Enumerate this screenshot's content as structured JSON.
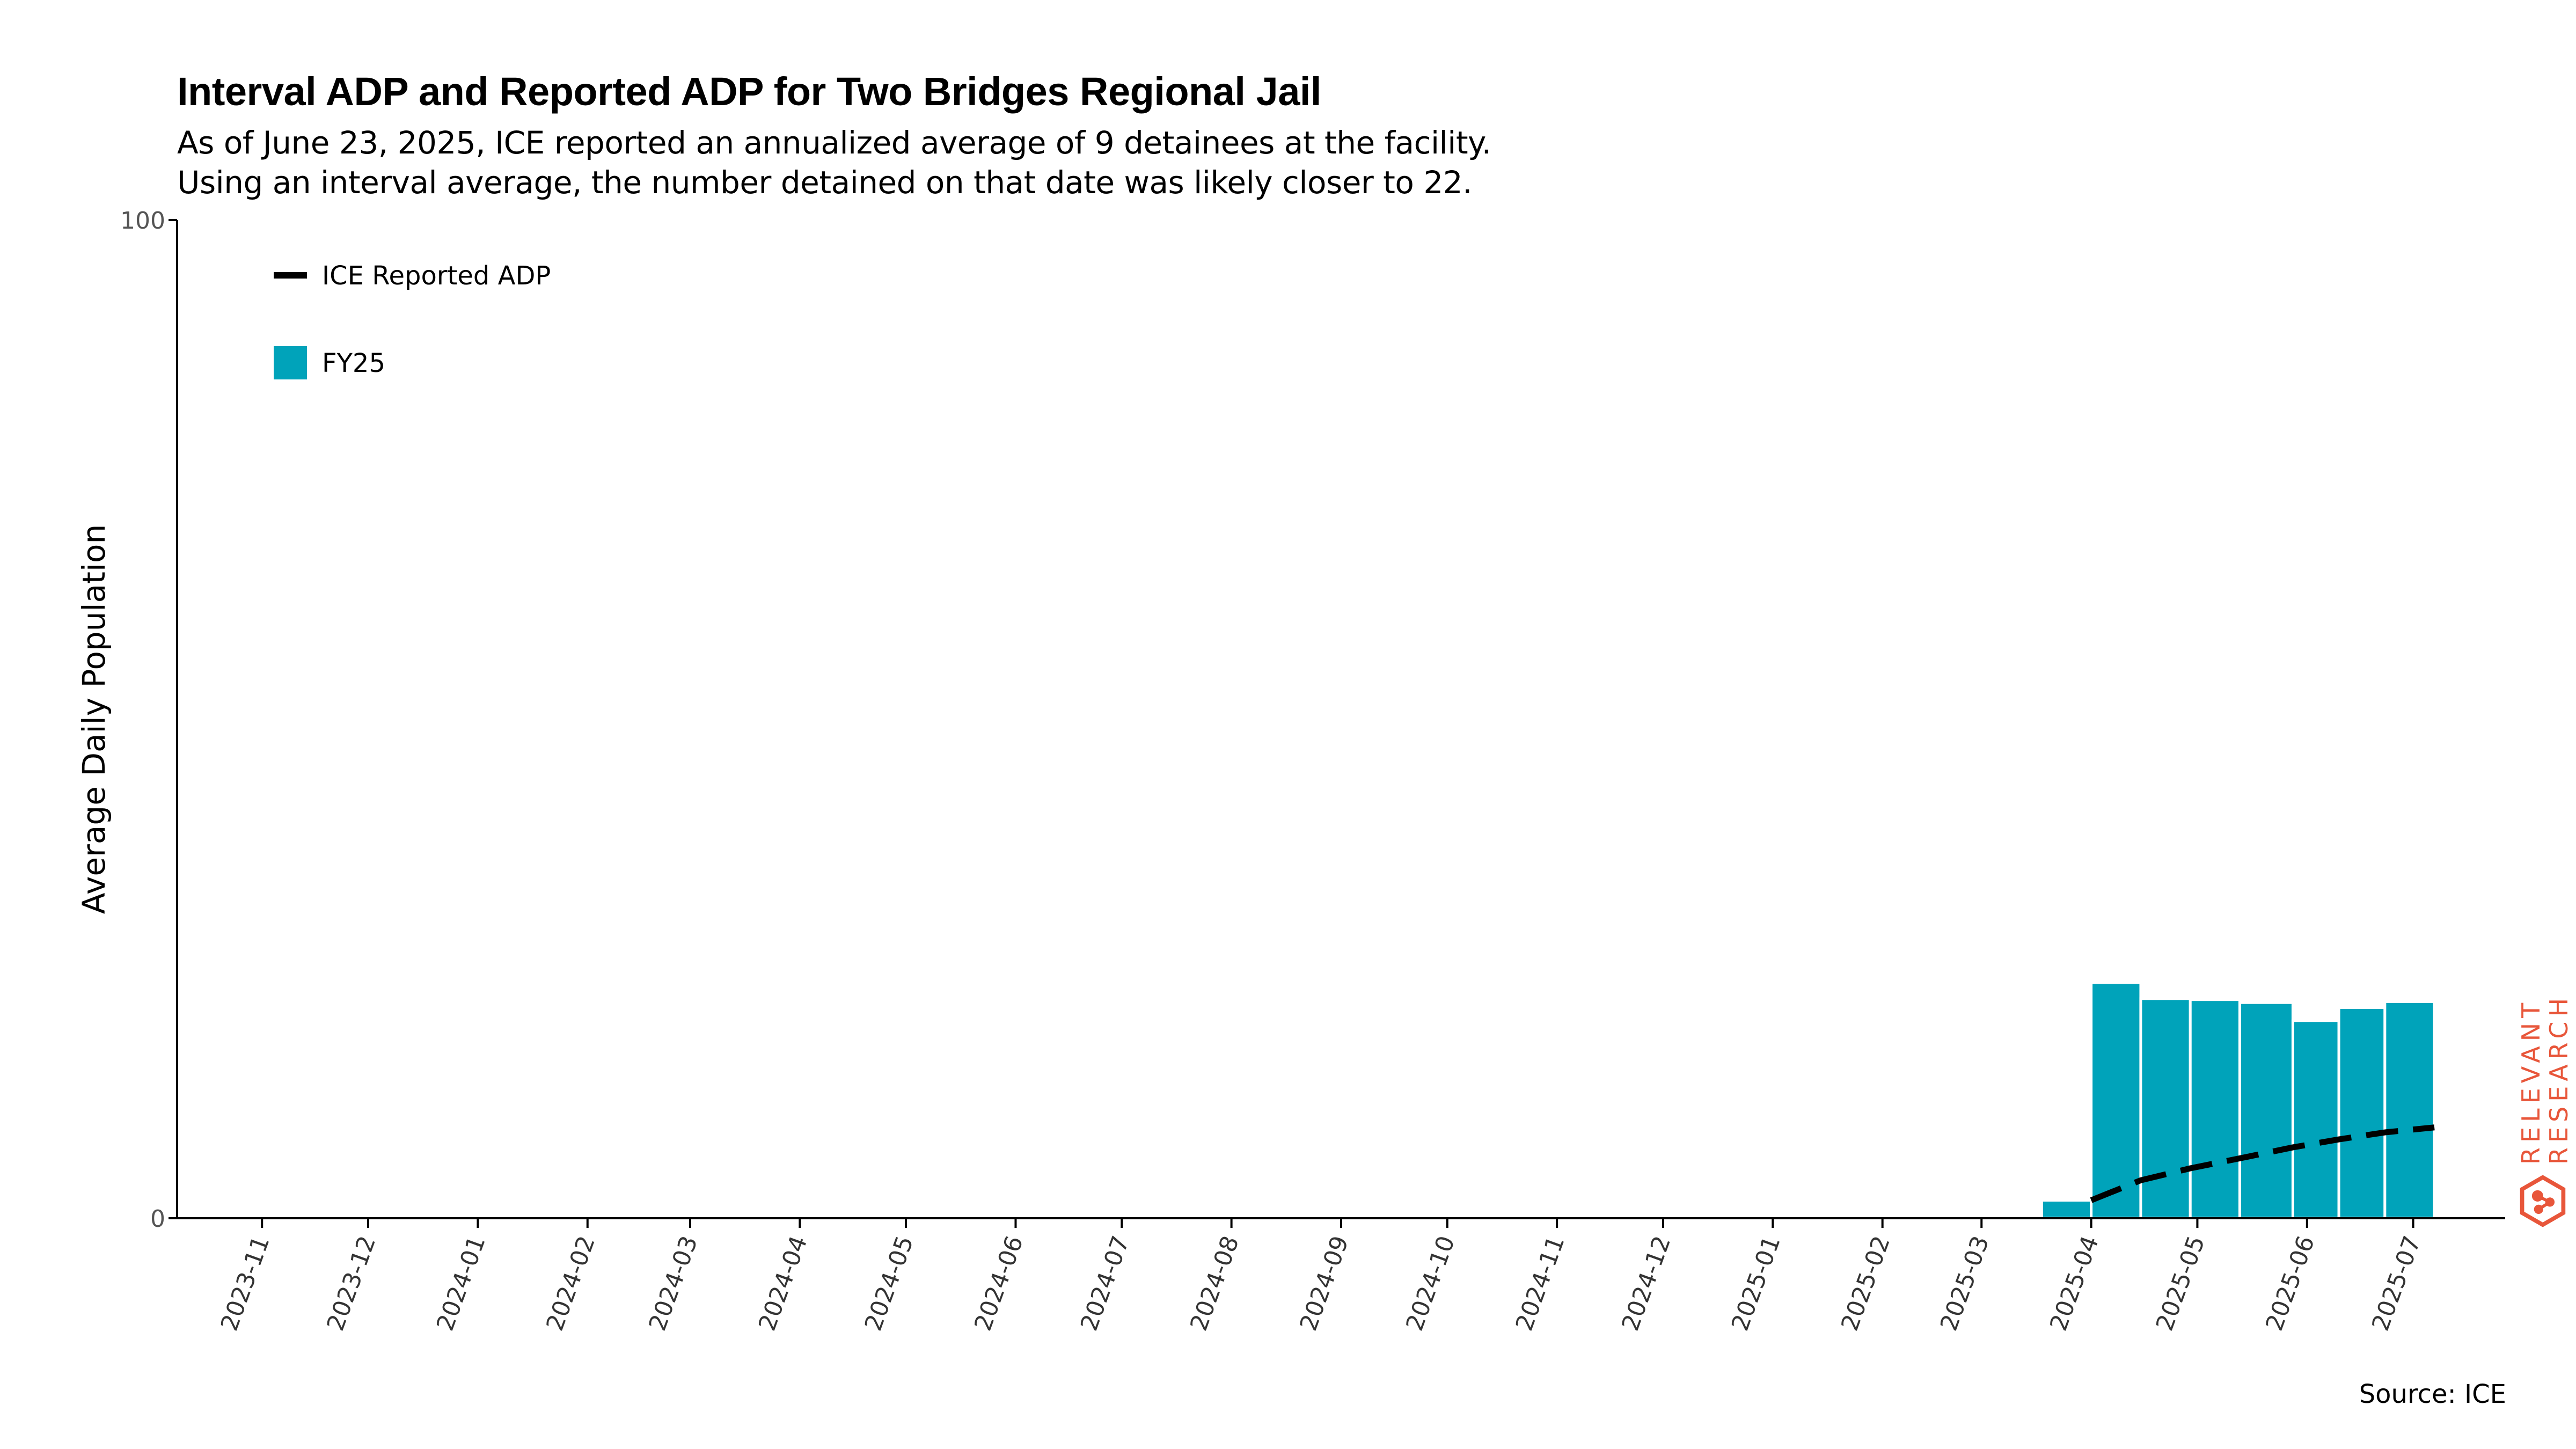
{
  "chart_data": {
    "type": "bar",
    "title": "Interval ADP and Reported ADP for Two Bridges Regional Jail",
    "subtitle": [
      "As of June 23, 2025, ICE reported an annualized average of 9 detainees at the facility.",
      "Using an interval average, the number detained on that date was likely closer to 22."
    ],
    "ylabel": "Average Daily Population",
    "xlabel": "",
    "ylim": [
      0,
      100
    ],
    "yticks": [
      0,
      100
    ],
    "x_range": [
      "2023-10-08",
      "2025-07-27"
    ],
    "xticks": [
      "2023-11",
      "2023-12",
      "2024-01",
      "2024-02",
      "2024-03",
      "2024-04",
      "2024-05",
      "2024-06",
      "2024-07",
      "2024-08",
      "2024-09",
      "2024-10",
      "2024-11",
      "2024-12",
      "2025-01",
      "2025-02",
      "2025-03",
      "2025-04",
      "2025-05",
      "2025-06",
      "2025-07"
    ],
    "legend": {
      "placement": "top-left",
      "entries": [
        {
          "label": "ICE Reported ADP",
          "type": "dashed-line",
          "color": "#000000"
        },
        {
          "label": "FY25",
          "type": "bar",
          "color": "#00a3ba"
        }
      ]
    },
    "series": [
      {
        "name": "FY25",
        "type": "bar",
        "color": "#00a3ba",
        "bars": [
          {
            "start": "2025-03-18",
            "end": "2025-04-01",
            "value": 1.8
          },
          {
            "start": "2025-04-01",
            "end": "2025-04-15",
            "value": 23.6
          },
          {
            "start": "2025-04-15",
            "end": "2025-04-29",
            "value": 22.0
          },
          {
            "start": "2025-04-29",
            "end": "2025-05-13",
            "value": 21.9
          },
          {
            "start": "2025-05-13",
            "end": "2025-05-28",
            "value": 21.6
          },
          {
            "start": "2025-05-28",
            "end": "2025-06-10",
            "value": 19.8
          },
          {
            "start": "2025-06-10",
            "end": "2025-06-23",
            "value": 21.1
          },
          {
            "start": "2025-06-23",
            "end": "2025-07-07",
            "value": 21.7
          }
        ]
      },
      {
        "name": "ICE Reported ADP",
        "type": "line",
        "style": "dashed",
        "color": "#000000",
        "points": [
          {
            "x": "2025-04-01",
            "y": 1.8
          },
          {
            "x": "2025-04-15",
            "y": 3.8
          },
          {
            "x": "2025-04-29",
            "y": 5.0
          },
          {
            "x": "2025-05-13",
            "y": 6.0
          },
          {
            "x": "2025-05-28",
            "y": 7.1
          },
          {
            "x": "2025-06-10",
            "y": 7.9
          },
          {
            "x": "2025-06-23",
            "y": 8.6
          },
          {
            "x": "2025-07-07",
            "y": 9.1
          }
        ]
      }
    ]
  },
  "source": "Source: ICE",
  "logo": {
    "line1": "RELEVANT",
    "line2": "RESEARCH",
    "color": "#e8563a"
  }
}
